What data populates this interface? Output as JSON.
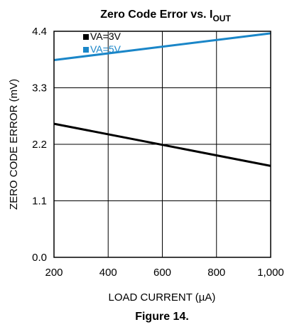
{
  "chart_data": {
    "type": "line",
    "title_main": "Zero Code Error vs. I",
    "title_sub": "OUT",
    "xlabel": "LOAD CURRENT (µA)",
    "ylabel": "ZERO CODE ERROR (mV)",
    "xlim": [
      200,
      1000
    ],
    "ylim": [
      0.0,
      4.4
    ],
    "x_ticks": [
      200,
      400,
      600,
      800,
      1000
    ],
    "x_tick_labels": [
      "200",
      "400",
      "600",
      "800",
      "1,000"
    ],
    "y_ticks": [
      0.0,
      1.1,
      2.2,
      3.3,
      4.4
    ],
    "y_tick_labels": [
      "0.0",
      "1.1",
      "2.2",
      "3.3",
      "4.4"
    ],
    "grid": true,
    "legend_position": "top-left",
    "series": [
      {
        "name": "VA=3V",
        "color": "#000000",
        "x": [
          200,
          1000
        ],
        "y": [
          2.6,
          1.78
        ]
      },
      {
        "name": "VA=5V",
        "color": "#1a86c8",
        "x": [
          200,
          1000
        ],
        "y": [
          3.84,
          4.36
        ]
      }
    ]
  },
  "caption": "Figure 14."
}
